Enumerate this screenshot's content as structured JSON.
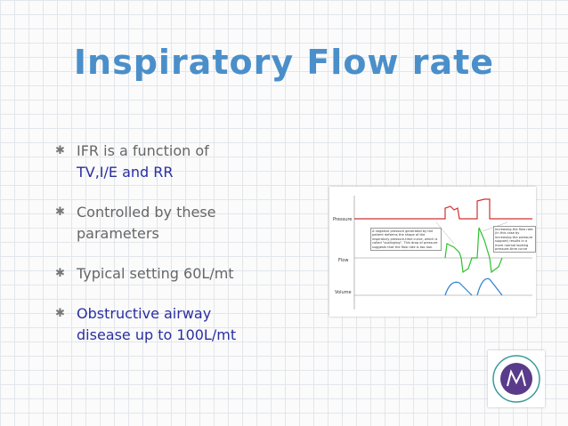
{
  "slide": {
    "title": "Inspiratory Flow rate",
    "bullets": [
      {
        "parts": [
          {
            "text": "IFR is a function of"
          },
          {
            "text": "TV,I/E and RR"
          }
        ]
      },
      {
        "parts": [
          {
            "text": "Controlled by these parameters"
          }
        ]
      },
      {
        "parts": [
          {
            "text": "Typical setting 60L/mt"
          }
        ]
      },
      {
        "parts": [
          {
            "text": "Obstructive airway disease up to 100L/mt"
          }
        ]
      }
    ],
    "figure": {
      "axis_labels": [
        "Pressure",
        "Flow",
        "Volume"
      ],
      "notes": [
        "A negative pressure generated by the patient deforms the shape of the inspiratory pressure-time curve, which is called \"scalloping\". This drop of pressure suggests that the flow rate is too low.",
        "Increasing the flow rate (in this case by increasing the pressure support) results in a more normal looking pressure-time curve"
      ]
    }
  }
}
